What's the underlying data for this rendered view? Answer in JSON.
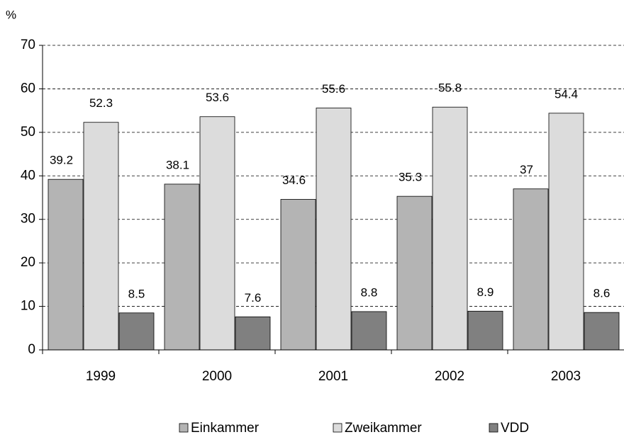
{
  "chart_data": {
    "type": "bar",
    "y_label": "%",
    "categories": [
      "1999",
      "2000",
      "2001",
      "2002",
      "2003"
    ],
    "series": [
      {
        "name": "Einkammer",
        "color": "#b4b4b4",
        "values": [
          39.2,
          38.1,
          34.6,
          35.3,
          37
        ]
      },
      {
        "name": "Zweikammer",
        "color": "#dcdcdc",
        "values": [
          52.3,
          53.6,
          55.6,
          55.8,
          54.4
        ]
      },
      {
        "name": "VDD",
        "color": "#808080",
        "values": [
          8.5,
          7.6,
          8.8,
          8.9,
          8.6
        ]
      }
    ],
    "ylim": [
      0,
      70
    ],
    "yticks": [
      0,
      10,
      20,
      30,
      40,
      50,
      60,
      70
    ],
    "grid": true,
    "legend": "bottom"
  }
}
